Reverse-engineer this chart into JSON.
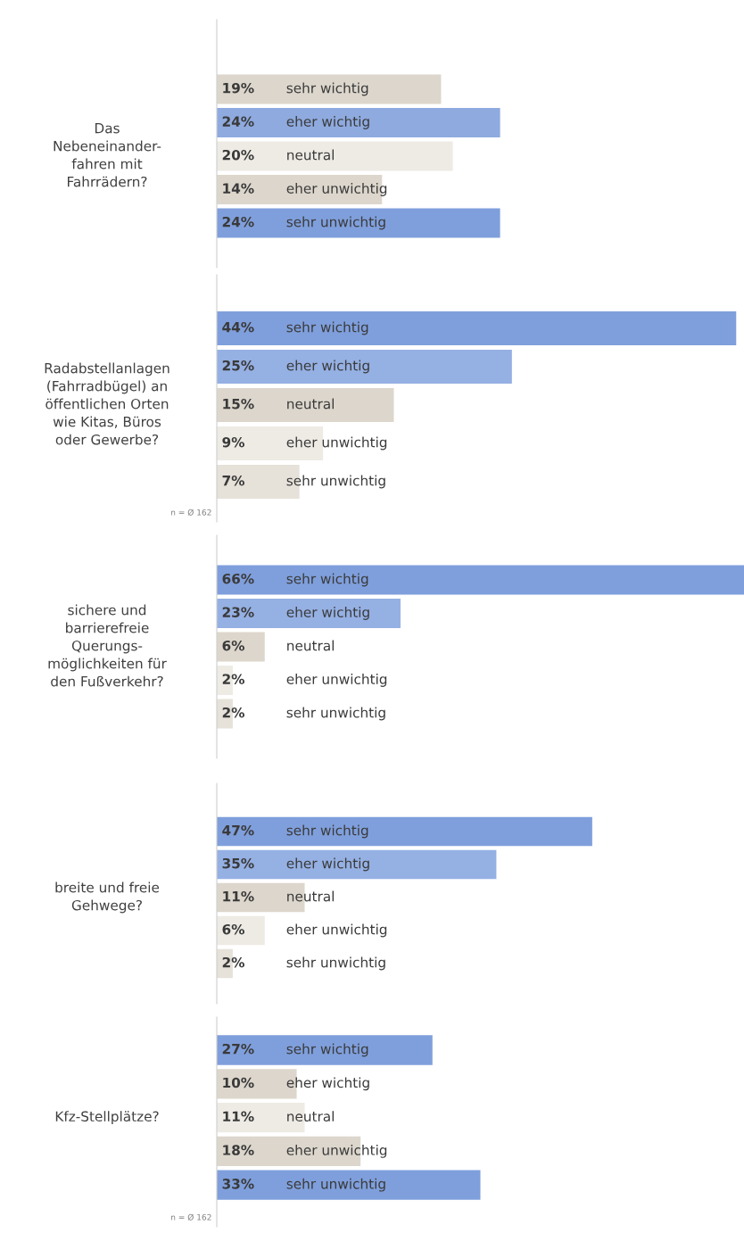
{
  "chart_data": [
    {
      "type": "bar",
      "orientation": "horizontal",
      "title": "Das\nNebeneinander-\nfahren mit\nFahrrädern?",
      "categories": [
        "sehr wichtig",
        "eher wichtig",
        "neutral",
        "eher unwichtig",
        "sehr unwichtig"
      ],
      "values": [
        19,
        24,
        20,
        14,
        24
      ],
      "colors": [
        "#dcd6cc",
        "#8eaadf",
        "#eeebe5",
        "#dcd6cc",
        "#7f9fdc"
      ],
      "value_labels": [
        "19%",
        "24%",
        "20%",
        "14%",
        "24%"
      ]
    },
    {
      "type": "bar",
      "orientation": "horizontal",
      "title": "Radabstellanlagen\n(Fahrradbügel) an\nöffentlichen Orten\nwie Kitas, Büros\noder Gewerbe?",
      "categories": [
        "sehr wichtig",
        "eher wichtig",
        "neutral",
        "eher unwichtig",
        "sehr unwichtig"
      ],
      "values": [
        44,
        25,
        15,
        9,
        7
      ],
      "colors": [
        "#7f9fdc",
        "#95b0e3",
        "#dcd6cc",
        "#eeebe5",
        "#e6e1d9"
      ],
      "value_labels": [
        "44%",
        "25%",
        "15%",
        "9%",
        "7%"
      ],
      "annotations": [
        "n = Ø 162"
      ]
    },
    {
      "type": "bar",
      "orientation": "horizontal",
      "title": "sichere und\nbarrierefreie\nQuerungs-\nmöglichkeiten für\nden Fußverkehr?",
      "categories": [
        "sehr wichtig",
        "eher wichtig",
        "neutral",
        "eher unwichtig",
        "sehr unwichtig"
      ],
      "values": [
        66,
        23,
        6,
        2,
        2
      ],
      "colors": [
        "#7f9fdc",
        "#95b0e3",
        "#dcd6cc",
        "#eeebe5",
        "#e6e1d9"
      ],
      "value_labels": [
        "66%",
        "23%",
        "6%",
        "2%",
        "2%"
      ]
    },
    {
      "type": "bar",
      "orientation": "horizontal",
      "title": "breite und freie\nGehwege?",
      "categories": [
        "sehr wichtig",
        "eher wichtig",
        "neutral",
        "eher unwichtig",
        "sehr unwichtig"
      ],
      "values": [
        47,
        35,
        11,
        6,
        2
      ],
      "colors": [
        "#7f9fdc",
        "#95b0e3",
        "#dcd6cc",
        "#eeebe5",
        "#e6e1d9"
      ],
      "value_labels": [
        "47%",
        "35%",
        "11%",
        "6%",
        "2%"
      ]
    },
    {
      "type": "bar",
      "orientation": "horizontal",
      "title": "Kfz-Stellplätze?",
      "categories": [
        "sehr wichtig",
        "eher wichtig",
        "neutral",
        "eher unwichtig",
        "sehr unwichtig"
      ],
      "values": [
        27,
        10,
        11,
        18,
        33
      ],
      "colors": [
        "#7f9fdc",
        "#dcd6cc",
        "#eeebe5",
        "#dcd6cc",
        "#7f9fdc"
      ],
      "value_labels": [
        "27%",
        "10%",
        "11%",
        "18%",
        "33%"
      ],
      "annotations": [
        "n = Ø 162"
      ]
    }
  ]
}
